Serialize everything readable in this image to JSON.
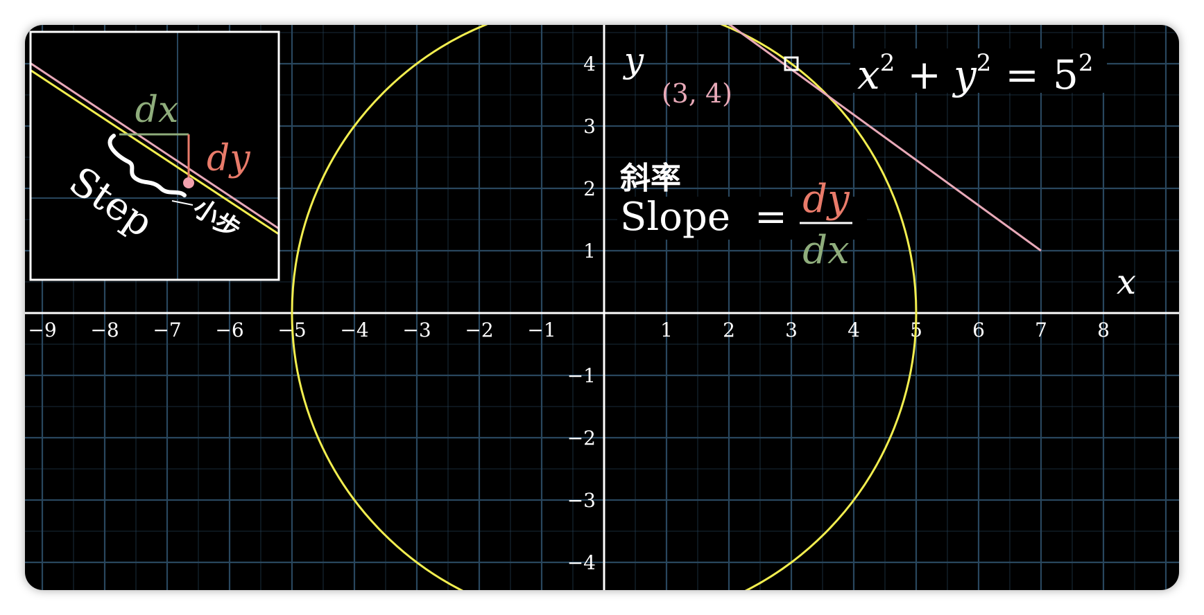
{
  "axes": {
    "x_label": "x",
    "y_label": "y",
    "x_ticks": [
      "−9",
      "−8",
      "−7",
      "−6",
      "−5",
      "−4",
      "−3",
      "−2",
      "−1",
      "1",
      "2",
      "3",
      "4",
      "5",
      "6",
      "7",
      "8"
    ],
    "y_ticks_positive": [
      "4",
      "3",
      "2",
      "1"
    ],
    "y_ticks_negative": [
      "−1",
      "−2",
      "−3",
      "−4"
    ]
  },
  "equation": {
    "x": "x",
    "y": "y",
    "plus": "+",
    "equals": "=",
    "base": "5",
    "exp": "2"
  },
  "point": {
    "label": "(3, 4)",
    "x": 3,
    "y": 4
  },
  "circle": {
    "radius": 5
  },
  "tangent_line": {
    "from": [
      1.5,
      5
    ],
    "to": [
      7,
      1
    ]
  },
  "slope_text": {
    "chinese": "斜率",
    "word": "Slope",
    "equals": "=",
    "numerator": "dy",
    "denominator": "dx"
  },
  "inset": {
    "dx_label": "dx",
    "dy_label": "dy",
    "step_label": "Step",
    "step_chinese": "小步"
  },
  "colors": {
    "background": "#000000",
    "grid": "#29475e",
    "axis": "#ffffff",
    "circle": "#f2ee4f",
    "tangent": "#e8a9b8",
    "dy": "#e97b6a",
    "dx": "#8fad7c",
    "point_label": "#e8a9b8"
  }
}
